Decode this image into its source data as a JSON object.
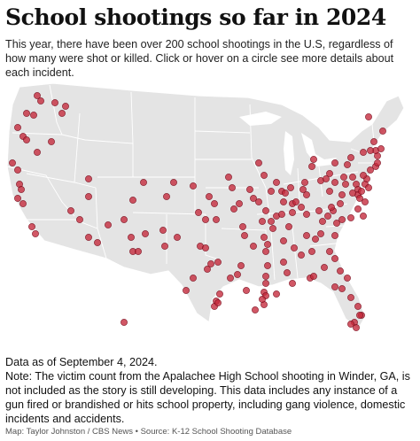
{
  "title": "School shootings so far in 2024",
  "subtitle": "This year, there have been over 200 school shootings in the U.S, regardless of how many were shot or killed. Click or hover on a circle see more details about each incident.",
  "notes": {
    "date": "Data as of September 4, 2024.",
    "text": "Note: The victim count from the Apalachee High School shooting in Winder, GA, is not included as the story is still developing. This data includes any instance of a gun fired or brandished or hits school property, including gang violence, domestic incidents and accidents."
  },
  "credit": "Map: Taylor Johnston / CBS News • Source: K-12 School Shooting Database",
  "colors": {
    "marker": "#c4283a",
    "land": "#e4e4e4",
    "border": "#ffffff"
  }
}
